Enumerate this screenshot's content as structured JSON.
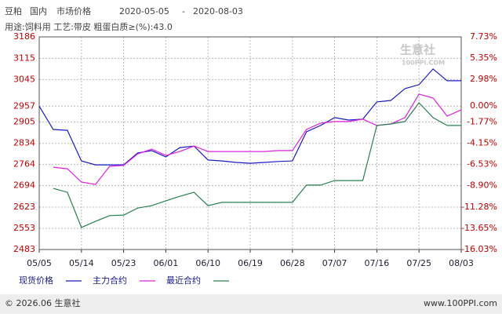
{
  "header": {
    "title_parts": [
      "豆粕",
      "国内",
      "市场价格",
      "2020-05-05",
      "-",
      "2020-08-03"
    ],
    "subtitle": "用途:饲料用 工艺:带皮 粗蛋白质≥(%):43.0"
  },
  "watermark": {
    "name": "生意社",
    "site": "100PPI.COM"
  },
  "chart_data": {
    "type": "line",
    "x": [
      "05/05",
      "05/08",
      "05/11",
      "05/14",
      "05/17",
      "05/20",
      "05/23",
      "05/26",
      "05/29",
      "06/01",
      "06/04",
      "06/07",
      "06/10",
      "06/13",
      "06/16",
      "06/19",
      "06/22",
      "06/25",
      "06/28",
      "07/01",
      "07/04",
      "07/07",
      "07/10",
      "07/13",
      "07/16",
      "07/19",
      "07/22",
      "07/25",
      "07/28",
      "07/31",
      "08/03"
    ],
    "xlim": [
      "05/05",
      "08/03"
    ],
    "xticks": [
      "05/05",
      "05/14",
      "05/23",
      "06/01",
      "06/10",
      "06/19",
      "06/28",
      "07/07",
      "07/16",
      "07/25",
      "08/03"
    ],
    "ylim": [
      2483,
      3186
    ],
    "yticks": [
      3186,
      3115,
      3045,
      2957,
      2905,
      2834,
      2764,
      2694,
      2623,
      2553,
      2483
    ],
    "y2lim": [
      -16.03,
      7.73
    ],
    "y2ticks": [
      {
        "value": 7.73,
        "label": "7.73%"
      },
      {
        "value": 5.35,
        "label": "5.35%"
      },
      {
        "value": 2.98,
        "label": "2.98%"
      },
      {
        "value": 0,
        "label": "0.00%"
      },
      {
        "value": -1.77,
        "label": "-1.77%"
      },
      {
        "value": -4.15,
        "label": "-4.15%"
      },
      {
        "value": -6.53,
        "label": "-6.53%"
      },
      {
        "value": -8.9,
        "label": "-8.90%"
      },
      {
        "value": -11.28,
        "label": "-11.28%"
      },
      {
        "value": -13.65,
        "label": "-13.65%"
      },
      {
        "value": -16.03,
        "label": "-16.03%"
      }
    ],
    "grid": true,
    "series": [
      {
        "name": "现货价格",
        "color": "#1a1ac8",
        "values": [
          2957,
          2880,
          2877,
          2776,
          2763,
          2763,
          2763,
          2802,
          2810,
          2789,
          2820,
          2825,
          2779,
          2776,
          2771,
          2768,
          2771,
          2774,
          2776,
          2872,
          2893,
          2919,
          2911,
          2914,
          2971,
          2976,
          3015,
          3028,
          3080,
          3041,
          3041
        ]
      },
      {
        "name": "主力合约",
        "color": "#e020e0",
        "values": [
          null,
          2755,
          2750,
          2706,
          2698,
          2758,
          2761,
          2799,
          2815,
          2794,
          2807,
          2825,
          2807,
          2807,
          2807,
          2807,
          2807,
          2810,
          2810,
          2880,
          2901,
          2906,
          2906,
          2914,
          2893,
          2898,
          2919,
          2997,
          2984,
          2924,
          2945
        ]
      },
      {
        "name": "最近合约",
        "color": "#2a8050",
        "values": [
          null,
          2685,
          2672,
          2556,
          2576,
          2595,
          2597,
          2620,
          2628,
          2644,
          2659,
          2672,
          2628,
          2639,
          2639,
          2639,
          2639,
          2639,
          2639,
          2696,
          2696,
          2711,
          2711,
          2711,
          2893,
          2898,
          2906,
          2968,
          2919,
          2893,
          2893
        ]
      }
    ]
  },
  "footer": {
    "copyright": "© 2026.06 生意社",
    "site": "www.100PPI.com"
  }
}
